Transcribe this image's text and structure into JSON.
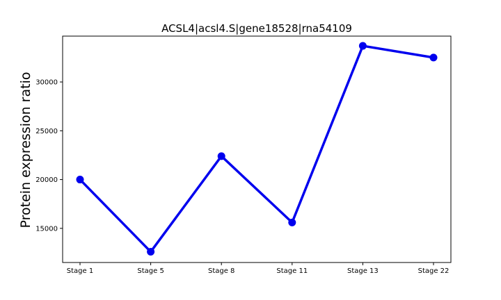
{
  "chart_data": {
    "type": "line",
    "title": "ACSL4|acsl4.S|gene18528|rna54109",
    "xlabel": "",
    "ylabel": "Protein expression ratio",
    "categories": [
      "Stage 1",
      "Stage 5",
      "Stage 8",
      "Stage 11",
      "Stage 13",
      "Stage 22"
    ],
    "series": [
      {
        "values": [
          20000,
          12600,
          22400,
          15600,
          33700,
          32500
        ]
      }
    ],
    "yticks": [
      15000,
      20000,
      25000,
      30000
    ],
    "ytick_labels": [
      "15000",
      "20000",
      "25000",
      "30000"
    ],
    "ylim": [
      11500,
      34700
    ],
    "grid": false,
    "legend": "none",
    "colors": {
      "line": "#0000ee",
      "marker": "#0000ee",
      "axis": "#000000"
    }
  }
}
